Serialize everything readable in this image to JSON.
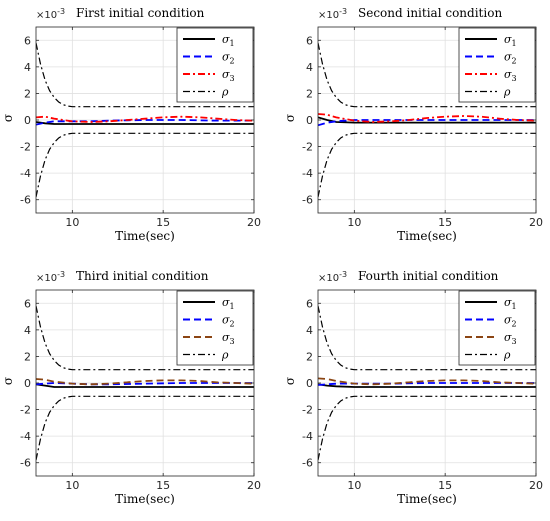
{
  "chart_data": [
    {
      "type": "line",
      "title": "First initial condition",
      "exponent_label": "×10",
      "exponent_power": "-3",
      "xlabel": "Time(sec)",
      "ylabel": "σ",
      "xlim": [
        8,
        20
      ],
      "ylim": [
        -7,
        7
      ],
      "xticks": [
        10,
        15,
        20
      ],
      "yticks": [
        -6,
        -4,
        -2,
        0,
        2,
        4,
        6
      ],
      "grid": true,
      "legend_position": "top-right",
      "series": [
        {
          "name": "σ1",
          "sub": "1",
          "color": "#000000",
          "dash": "solid",
          "x": [
            8,
            8.5,
            9,
            10,
            11,
            12,
            14,
            16,
            18,
            20
          ],
          "y": [
            -0.15,
            -0.25,
            -0.3,
            -0.3,
            -0.3,
            -0.3,
            -0.3,
            -0.3,
            -0.3,
            -0.3
          ]
        },
        {
          "name": "σ2",
          "sub": "2",
          "color": "#0000ff",
          "dash": "dashed",
          "x": [
            8,
            8.5,
            9,
            10,
            11,
            12,
            14,
            16,
            18,
            20
          ],
          "y": [
            -0.35,
            -0.2,
            -0.1,
            -0.1,
            -0.1,
            -0.05,
            0,
            0,
            -0.05,
            -0.05
          ]
        },
        {
          "name": "σ3",
          "sub": "3",
          "color": "#ff0000",
          "dash": "dashdot",
          "x": [
            8,
            8.5,
            9,
            10,
            11,
            12,
            13,
            14,
            15,
            16,
            17,
            18,
            19,
            20
          ],
          "y": [
            0.2,
            0.25,
            0.1,
            -0.1,
            -0.15,
            -0.1,
            0,
            0.1,
            0.2,
            0.25,
            0.2,
            0.1,
            0,
            -0.05
          ]
        },
        {
          "name": "ρ",
          "sub": "",
          "color": "#000000",
          "dash": "dashdot",
          "symmetric": true,
          "x": [
            8,
            8.25,
            8.5,
            8.75,
            9,
            9.25,
            9.5,
            9.75,
            10,
            11,
            12,
            14,
            16,
            18,
            20
          ],
          "y": [
            5.8,
            4.2,
            3.0,
            2.2,
            1.7,
            1.35,
            1.15,
            1.05,
            1.0,
            1.0,
            1.0,
            1.0,
            1.0,
            1.0,
            1.0
          ]
        }
      ]
    },
    {
      "type": "line",
      "title": "Second initial condition",
      "exponent_label": "×10",
      "exponent_power": "-3",
      "xlabel": "Time(sec)",
      "ylabel": "σ",
      "xlim": [
        8,
        20
      ],
      "ylim": [
        -7,
        7
      ],
      "xticks": [
        10,
        15,
        20
      ],
      "yticks": [
        -6,
        -4,
        -2,
        0,
        2,
        4,
        6
      ],
      "grid": true,
      "legend_position": "top-right",
      "series": [
        {
          "name": "σ1",
          "sub": "1",
          "color": "#000000",
          "dash": "solid",
          "x": [
            8,
            8.5,
            9,
            10,
            11,
            12,
            14,
            16,
            18,
            20
          ],
          "y": [
            0.2,
            0.0,
            -0.15,
            -0.2,
            -0.2,
            -0.2,
            -0.2,
            -0.2,
            -0.2,
            -0.2
          ]
        },
        {
          "name": "σ2",
          "sub": "2",
          "color": "#0000ff",
          "dash": "dashed",
          "x": [
            8,
            8.5,
            9,
            10,
            11,
            12,
            14,
            16,
            18,
            20
          ],
          "y": [
            -0.4,
            -0.2,
            -0.1,
            0,
            0,
            0,
            0,
            0,
            0,
            0
          ]
        },
        {
          "name": "σ3",
          "sub": "3",
          "color": "#ff0000",
          "dash": "dashdot",
          "x": [
            8,
            8.5,
            9,
            10,
            11,
            12,
            13,
            14,
            15,
            16,
            17,
            18,
            19,
            20
          ],
          "y": [
            0.45,
            0.4,
            0.2,
            -0.05,
            -0.15,
            -0.1,
            0,
            0.15,
            0.25,
            0.3,
            0.25,
            0.1,
            0,
            -0.05
          ]
        },
        {
          "name": "ρ",
          "sub": "",
          "color": "#000000",
          "dash": "dashdot",
          "symmetric": true,
          "x": [
            8,
            8.25,
            8.5,
            8.75,
            9,
            9.25,
            9.5,
            9.75,
            10,
            11,
            12,
            14,
            16,
            18,
            20
          ],
          "y": [
            5.8,
            4.2,
            3.0,
            2.2,
            1.7,
            1.35,
            1.15,
            1.05,
            1.0,
            1.0,
            1.0,
            1.0,
            1.0,
            1.0,
            1.0
          ]
        }
      ]
    },
    {
      "type": "line",
      "title": "Third initial condition",
      "exponent_label": "×10",
      "exponent_power": "-3",
      "xlabel": "Time(sec)",
      "ylabel": "σ",
      "xlim": [
        8,
        20
      ],
      "ylim": [
        -7,
        7
      ],
      "xticks": [
        10,
        15,
        20
      ],
      "yticks": [
        -6,
        -4,
        -2,
        0,
        2,
        4,
        6
      ],
      "grid": true,
      "legend_position": "top-right",
      "series": [
        {
          "name": "σ1",
          "sub": "1",
          "color": "#000000",
          "dash": "solid",
          "x": [
            8,
            8.5,
            9,
            10,
            11,
            12,
            14,
            16,
            18,
            20
          ],
          "y": [
            -0.1,
            -0.2,
            -0.3,
            -0.3,
            -0.3,
            -0.3,
            -0.3,
            -0.3,
            -0.3,
            -0.3
          ]
        },
        {
          "name": "σ2",
          "sub": "2",
          "color": "#0000ff",
          "dash": "dashed",
          "x": [
            8,
            8.5,
            9,
            10,
            11,
            12,
            14,
            16,
            18,
            20
          ],
          "y": [
            -0.1,
            -0.05,
            0,
            -0.05,
            -0.1,
            -0.1,
            -0.05,
            0,
            0,
            0
          ]
        },
        {
          "name": "σ3",
          "sub": "3",
          "color": "#8b4513",
          "dash": "dashed",
          "x": [
            8,
            8.5,
            9,
            10,
            11,
            12,
            13,
            14,
            15,
            16,
            17,
            18,
            19,
            20
          ],
          "y": [
            0.3,
            0.25,
            0.1,
            -0.05,
            -0.1,
            -0.05,
            0.05,
            0.15,
            0.2,
            0.2,
            0.15,
            0.05,
            0,
            -0.05
          ]
        },
        {
          "name": "ρ",
          "sub": "",
          "color": "#000000",
          "dash": "dashdot",
          "symmetric": true,
          "x": [
            8,
            8.25,
            8.5,
            8.75,
            9,
            9.25,
            9.5,
            9.75,
            10,
            11,
            12,
            14,
            16,
            18,
            20
          ],
          "y": [
            5.8,
            4.2,
            3.0,
            2.2,
            1.7,
            1.35,
            1.15,
            1.05,
            1.0,
            1.0,
            1.0,
            1.0,
            1.0,
            1.0,
            1.0
          ]
        }
      ]
    },
    {
      "type": "line",
      "title": "Fourth initial condition",
      "exponent_label": "×10",
      "exponent_power": "-3",
      "xlabel": "Time(sec)",
      "ylabel": "σ",
      "xlim": [
        8,
        20
      ],
      "ylim": [
        -7,
        7
      ],
      "xticks": [
        10,
        15,
        20
      ],
      "yticks": [
        -6,
        -4,
        -2,
        0,
        2,
        4,
        6
      ],
      "grid": true,
      "legend_position": "top-right",
      "series": [
        {
          "name": "σ1",
          "sub": "1",
          "color": "#000000",
          "dash": "solid",
          "x": [
            8,
            8.5,
            9,
            10,
            11,
            12,
            14,
            16,
            18,
            20
          ],
          "y": [
            -0.1,
            -0.2,
            -0.25,
            -0.3,
            -0.3,
            -0.3,
            -0.3,
            -0.3,
            -0.3,
            -0.3
          ]
        },
        {
          "name": "σ2",
          "sub": "2",
          "color": "#0000ff",
          "dash": "dashed",
          "x": [
            8,
            8.5,
            9,
            10,
            11,
            12,
            14,
            16,
            18,
            20
          ],
          "y": [
            -0.15,
            -0.1,
            -0.05,
            -0.05,
            -0.05,
            -0.05,
            0,
            0,
            0,
            0
          ]
        },
        {
          "name": "σ3",
          "sub": "3",
          "color": "#8b4513",
          "dash": "dashed",
          "x": [
            8,
            8.5,
            9,
            10,
            11,
            12,
            13,
            14,
            15,
            16,
            17,
            18,
            19,
            20
          ],
          "y": [
            0.35,
            0.3,
            0.15,
            -0.05,
            -0.1,
            -0.05,
            0.05,
            0.15,
            0.2,
            0.2,
            0.15,
            0.05,
            0,
            -0.05
          ]
        },
        {
          "name": "ρ",
          "sub": "",
          "color": "#000000",
          "dash": "dashdot",
          "symmetric": true,
          "x": [
            8,
            8.25,
            8.5,
            8.75,
            9,
            9.25,
            9.5,
            9.75,
            10,
            11,
            12,
            14,
            16,
            18,
            20
          ],
          "y": [
            5.8,
            4.2,
            3.0,
            2.2,
            1.7,
            1.35,
            1.15,
            1.05,
            1.0,
            1.0,
            1.0,
            1.0,
            1.0,
            1.0,
            1.0
          ]
        }
      ]
    }
  ]
}
